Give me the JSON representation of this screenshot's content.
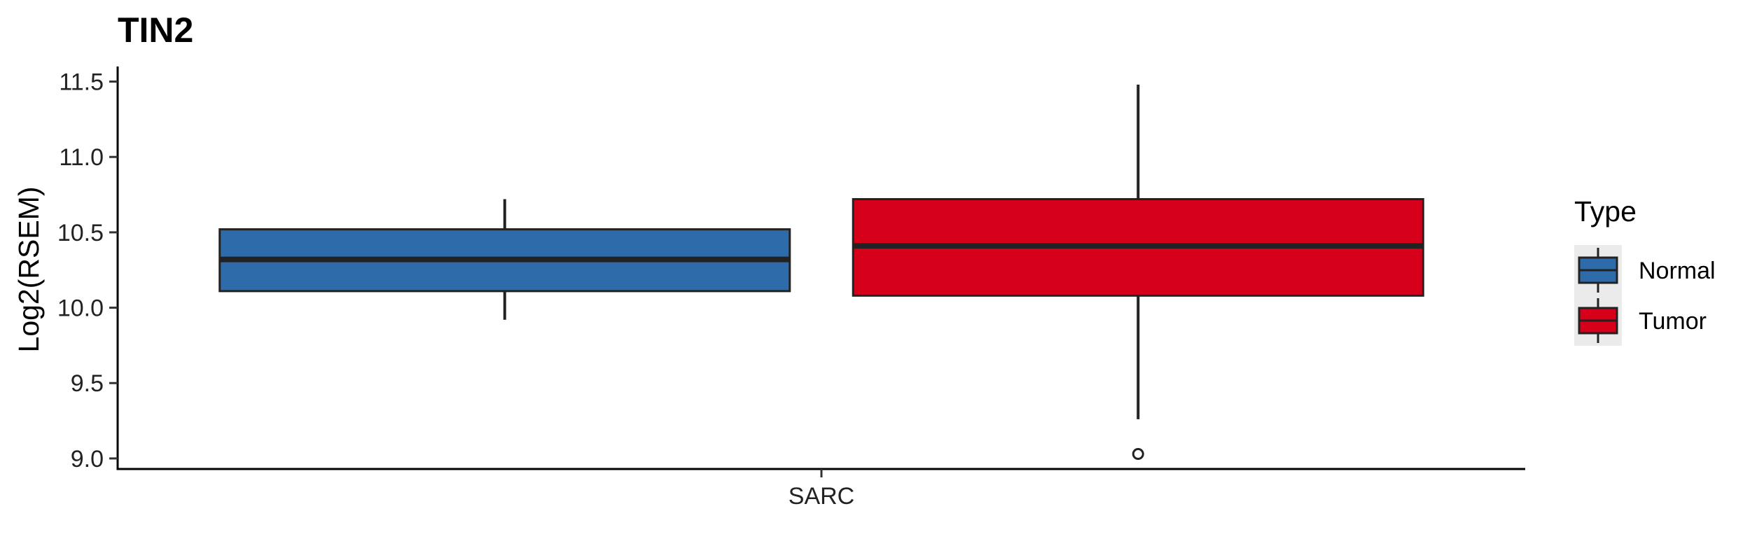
{
  "chart_data": {
    "type": "box",
    "title": "TIN2",
    "xlabel": "",
    "ylabel": "Log2(RSEM)",
    "ylim": [
      8.93,
      11.6
    ],
    "yticks": [
      9.0,
      9.5,
      10.0,
      10.5,
      11.0,
      11.5
    ],
    "ytick_labels": [
      "9.0",
      "9.5",
      "10.0",
      "10.5",
      "11.0",
      "11.5"
    ],
    "categories": [
      "SARC"
    ],
    "grid": false,
    "legend": {
      "title": "Type",
      "position": "right",
      "entries": [
        {
          "label": "Normal",
          "color": "#2E6BAA"
        },
        {
          "label": "Tumor",
          "color": "#D7001A"
        }
      ]
    },
    "series": [
      {
        "name": "Normal",
        "color": "#2E6BAA",
        "boxes": [
          {
            "category": "SARC",
            "whisker_low": 9.92,
            "q1": 10.11,
            "median": 10.32,
            "q3": 10.52,
            "whisker_high": 10.72,
            "outliers": []
          }
        ]
      },
      {
        "name": "Tumor",
        "color": "#D7001A",
        "boxes": [
          {
            "category": "SARC",
            "whisker_low": 9.26,
            "q1": 10.08,
            "median": 10.41,
            "q3": 10.72,
            "whisker_high": 11.48,
            "outliers": [
              9.03
            ]
          }
        ]
      }
    ]
  }
}
